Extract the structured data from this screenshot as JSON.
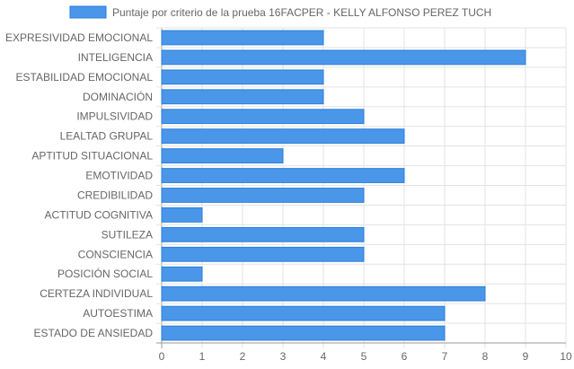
{
  "chart_data": {
    "type": "bar",
    "orientation": "horizontal",
    "series": [
      {
        "name": "Puntaje por criterio de la prueba 16FACPER - KELLY ALFONSO PEREZ TUCH",
        "values": [
          4,
          9,
          4,
          4,
          5,
          6,
          3,
          6,
          5,
          1,
          5,
          5,
          1,
          8,
          7,
          7
        ]
      }
    ],
    "categories": [
      "EXPRESIVIDAD EMOCIONAL",
      "INTELIGENCIA",
      "ESTABILIDAD EMOCIONAL",
      "DOMINACIÓN",
      "IMPULSIVIDAD",
      "LEALTAD GRUPAL",
      "APTITUD SITUACIONAL",
      "EMOTIVIDAD",
      "CREDIBILIDAD",
      "ACTITUD COGNITIVA",
      "SUTILEZA",
      "CONSCIENCIA",
      "POSICIÓN SOCIAL",
      "CERTEZA INDIVIDUAL",
      "AUTOESTIMA",
      "ESTADO DE ANSIEDAD"
    ],
    "xlim": [
      0,
      10
    ],
    "xticks": [
      "0",
      "1",
      "2",
      "3",
      "4",
      "5",
      "6",
      "7",
      "8",
      "9",
      "10"
    ],
    "grid": true,
    "legend_position": "top",
    "colors": {
      "bar_fill": "#4a97ea",
      "bar_stroke": "#2a7ed8",
      "grid": "#e3e3e3",
      "axis": "#9a9a9a",
      "text": "#666666"
    }
  }
}
